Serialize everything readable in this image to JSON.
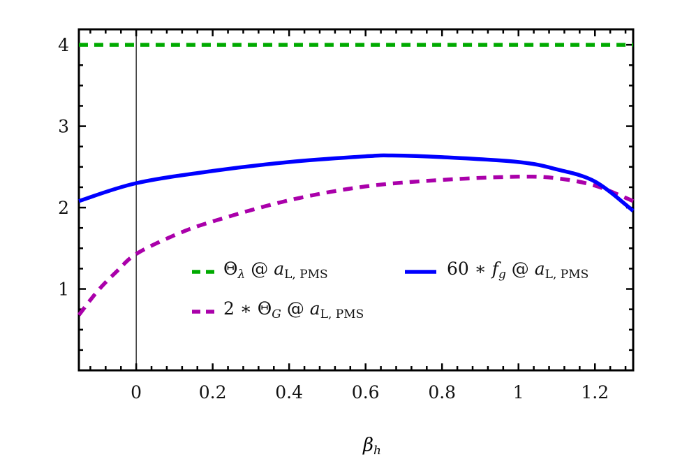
{
  "chart_data": {
    "type": "line",
    "xlabel": {
      "main": "β",
      "sub": "h"
    },
    "ylabel": "",
    "xlim": [
      -0.15,
      1.3
    ],
    "ylim": [
      0,
      4.19
    ],
    "x_ticks": [
      "0",
      "0.2",
      "0.4",
      "0.6",
      "0.8",
      "1",
      "1.2"
    ],
    "x_tick_values": [
      0,
      0.2,
      0.4,
      0.6,
      0.8,
      1,
      1.2
    ],
    "y_ticks": [
      "1",
      "2",
      "3",
      "4"
    ],
    "y_tick_values": [
      1,
      2,
      3,
      4
    ],
    "grid": false,
    "vertical_reference_line_x": 0,
    "legend_placement": "center",
    "series": [
      {
        "name": {
          "pre": "",
          "sym": "Θ",
          "sub": "λ",
          "mid": " @ ",
          "a": "a",
          "sub2": "L, PMS"
        },
        "color": "#00aa00",
        "style": "dashed",
        "x": [
          -0.15,
          1.3
        ],
        "y": [
          4.0,
          4.0
        ]
      },
      {
        "name": {
          "pre": "60 ∗ ",
          "sym": "f",
          "sub": "g",
          "mid": " @ ",
          "a": "a",
          "sub2": "L, PMS"
        },
        "color": "#0000ff",
        "style": "solid",
        "x": [
          -0.15,
          0,
          0.2,
          0.4,
          0.6,
          0.67,
          0.8,
          1.0,
          1.1,
          1.2,
          1.3
        ],
        "y": [
          2.08,
          2.3,
          2.45,
          2.56,
          2.63,
          2.64,
          2.62,
          2.56,
          2.47,
          2.32,
          1.96
        ]
      },
      {
        "name": {
          "pre": "2 ∗ ",
          "sym": "Θ",
          "sub": "G",
          "mid": " @ ",
          "a": "a",
          "sub2": "L, PMS"
        },
        "color": "#aa00aa",
        "style": "dashed",
        "x": [
          -0.15,
          -0.1,
          -0.05,
          0,
          0.1,
          0.2,
          0.4,
          0.6,
          0.8,
          1.0,
          1.1,
          1.2,
          1.3
        ],
        "y": [
          0.68,
          0.98,
          1.22,
          1.43,
          1.66,
          1.83,
          2.09,
          2.26,
          2.34,
          2.38,
          2.36,
          2.27,
          2.08
        ]
      }
    ]
  }
}
